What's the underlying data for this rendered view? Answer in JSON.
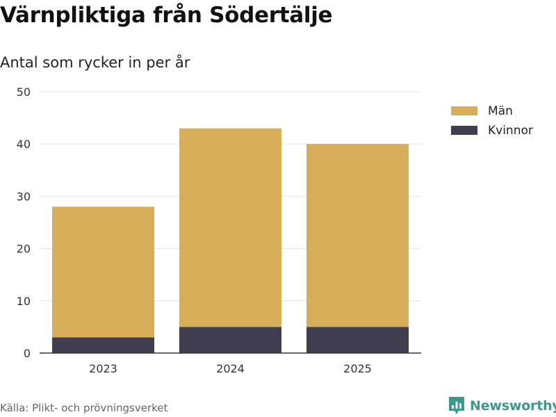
{
  "chart_data": {
    "type": "bar",
    "stacked": true,
    "title": "Värnpliktiga från Södertälje",
    "subtitle": "Antal som rycker in per år",
    "categories": [
      "2023",
      "2024",
      "2025"
    ],
    "series": [
      {
        "name": "Kvinnor",
        "values": [
          3,
          5,
          5
        ],
        "color": "#403e4e"
      },
      {
        "name": "Män",
        "values": [
          25,
          38,
          35
        ],
        "color": "#d9ae5a"
      }
    ],
    "legend_order": [
      "Män",
      "Kvinnor"
    ],
    "ylim": [
      0,
      50
    ],
    "yticks": [
      0,
      10,
      20,
      30,
      40,
      50
    ],
    "grid": true,
    "legend_position": "right-top",
    "xlabel": "",
    "ylabel": ""
  },
  "source": "Källa: Plikt- och prövningsverket",
  "brand": {
    "name": "Newsworthy",
    "icon": "newsworthy-logo-icon",
    "color": "#3a9a8c"
  }
}
